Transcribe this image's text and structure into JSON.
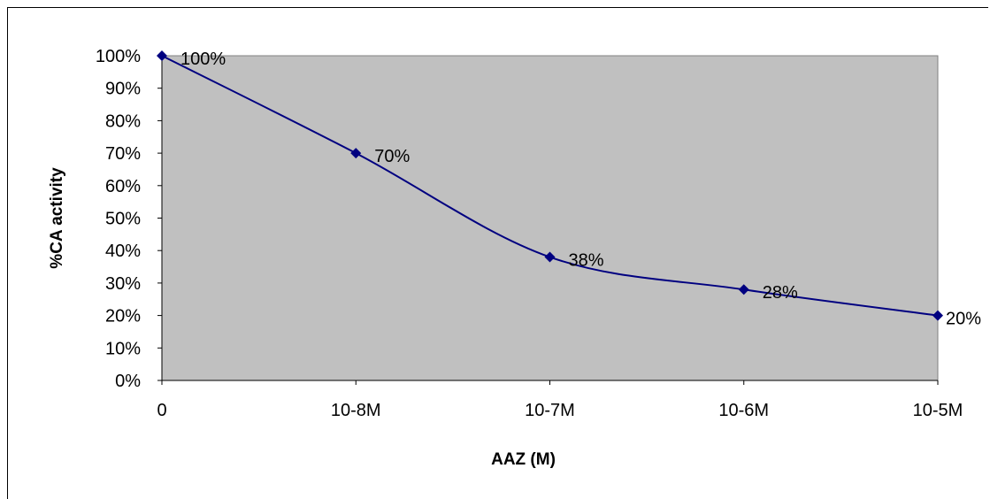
{
  "chart_data": {
    "type": "line",
    "title": "",
    "xlabel": "AAZ (M)",
    "ylabel": "%CA activity",
    "categories": [
      "0",
      "10-8M",
      "10-7M",
      "10-6M",
      "10-5M"
    ],
    "series": [
      {
        "values": [
          100,
          70,
          38,
          28,
          20
        ],
        "labels": [
          "100%",
          "70%",
          "38%",
          "28%",
          "20%"
        ],
        "color": "#000080"
      }
    ],
    "ylim": [
      0,
      100
    ],
    "yticks": [
      "0%",
      "10%",
      "20%",
      "30%",
      "40%",
      "50%",
      "60%",
      "70%",
      "80%",
      "90%",
      "100%"
    ],
    "plot_background": "#c0c0c0",
    "grid": false,
    "smooth": true,
    "marker": "diamond"
  }
}
